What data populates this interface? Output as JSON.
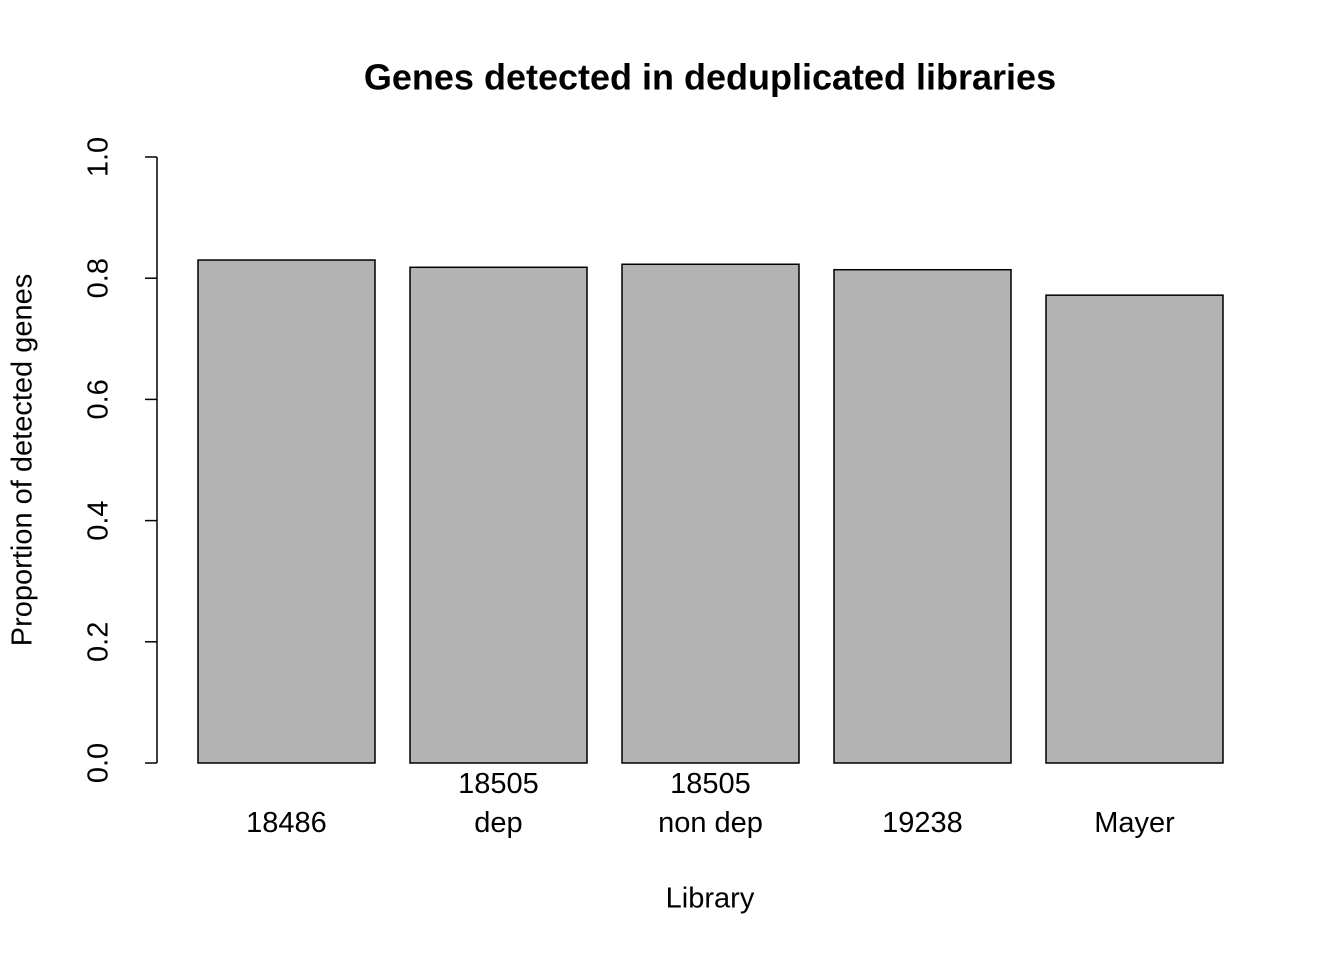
{
  "chart_data": {
    "type": "bar",
    "title": "Genes detected in deduplicated libraries",
    "x_label": "Library",
    "y_label": "Proportion of detected genes",
    "categories": [
      "18486",
      "18505\ndep",
      "18505\nnon dep",
      "19238",
      "Mayer"
    ],
    "values": [
      0.83,
      0.818,
      0.823,
      0.814,
      0.772
    ],
    "color": "#b3b3b3",
    "ylim": [
      0,
      1
    ],
    "yticks": [
      {
        "value": 0,
        "label": "0.0"
      },
      0.2,
      0.4,
      0.6,
      0.8,
      {
        "value": 1,
        "label": "1.0"
      }
    ]
  }
}
